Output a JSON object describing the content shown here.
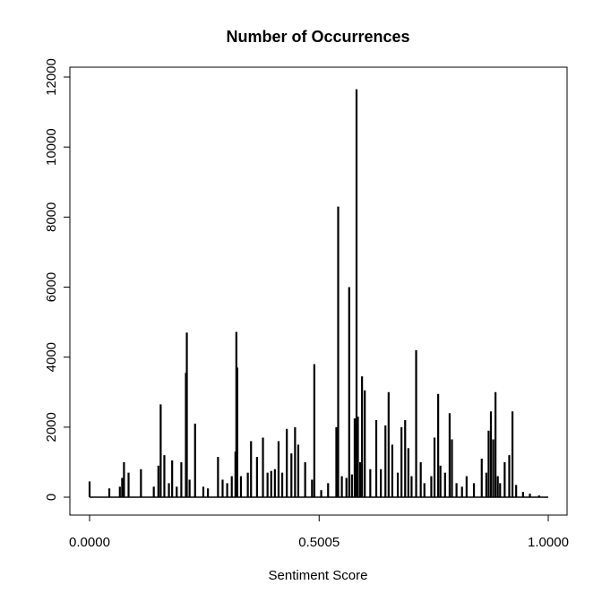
{
  "chart_data": {
    "type": "bar",
    "title": "Number of Occurrences",
    "xlabel": "Sentiment Score",
    "ylabel": "",
    "xlim": [
      0,
      1
    ],
    "ylim": [
      0,
      12000
    ],
    "x_ticks": [
      {
        "value": 0.0,
        "label": "0.0000"
      },
      {
        "value": 0.5005,
        "label": "0.5005"
      },
      {
        "value": 1.0,
        "label": "1.0000"
      }
    ],
    "y_ticks": [
      {
        "value": 0,
        "label": "0"
      },
      {
        "value": 2000,
        "label": "2000"
      },
      {
        "value": 4000,
        "label": "4000"
      },
      {
        "value": 6000,
        "label": "6000"
      },
      {
        "value": 8000,
        "label": "8000"
      },
      {
        "value": 10000,
        "label": "10000"
      },
      {
        "value": 12000,
        "label": "12000"
      }
    ],
    "grid": false,
    "series": [
      {
        "x": [
          0.0,
          0.043,
          0.066,
          0.071,
          0.075,
          0.085,
          0.112,
          0.14,
          0.15,
          0.155,
          0.163,
          0.173,
          0.18,
          0.19,
          0.2,
          0.21,
          0.212,
          0.218,
          0.23,
          0.248,
          0.258,
          0.28,
          0.29,
          0.3,
          0.31,
          0.318,
          0.32,
          0.322,
          0.33,
          0.345,
          0.352,
          0.365,
          0.378,
          0.388,
          0.396,
          0.404,
          0.412,
          0.42,
          0.43,
          0.44,
          0.448,
          0.455,
          0.47,
          0.485,
          0.49,
          0.505,
          0.52,
          0.538,
          0.542,
          0.55,
          0.56,
          0.566,
          0.572,
          0.578,
          0.582,
          0.585,
          0.59,
          0.594,
          0.6,
          0.612,
          0.625,
          0.635,
          0.645,
          0.652,
          0.66,
          0.672,
          0.68,
          0.688,
          0.695,
          0.702,
          0.712,
          0.722,
          0.73,
          0.745,
          0.752,
          0.76,
          0.765,
          0.775,
          0.785,
          0.79,
          0.8,
          0.812,
          0.822,
          0.838,
          0.855,
          0.865,
          0.87,
          0.875,
          0.88,
          0.885,
          0.89,
          0.895,
          0.905,
          0.915,
          0.922,
          0.93,
          0.945,
          0.96,
          0.98,
          1.0
        ],
        "y": [
          450,
          250,
          300,
          550,
          1000,
          700,
          800,
          300,
          900,
          2650,
          1200,
          400,
          1050,
          300,
          1000,
          3550,
          4700,
          500,
          2100,
          300,
          250,
          1150,
          500,
          400,
          600,
          1300,
          4720,
          3700,
          600,
          700,
          1600,
          1150,
          1700,
          700,
          750,
          800,
          1600,
          700,
          1950,
          1250,
          2000,
          1500,
          1000,
          500,
          3800,
          200,
          400,
          2000,
          8300,
          600,
          550,
          6000,
          650,
          2250,
          11650,
          2300,
          1000,
          3450,
          3050,
          800,
          2200,
          800,
          2050,
          3000,
          1500,
          700,
          2000,
          2200,
          1400,
          600,
          4200,
          1000,
          400,
          600,
          1700,
          2950,
          900,
          700,
          2400,
          1650,
          400,
          300,
          600,
          400,
          1100,
          700,
          1900,
          2450,
          1650,
          3000,
          600,
          400,
          1000,
          1200,
          2450,
          350,
          150,
          100,
          50,
          0
        ]
      }
    ]
  }
}
